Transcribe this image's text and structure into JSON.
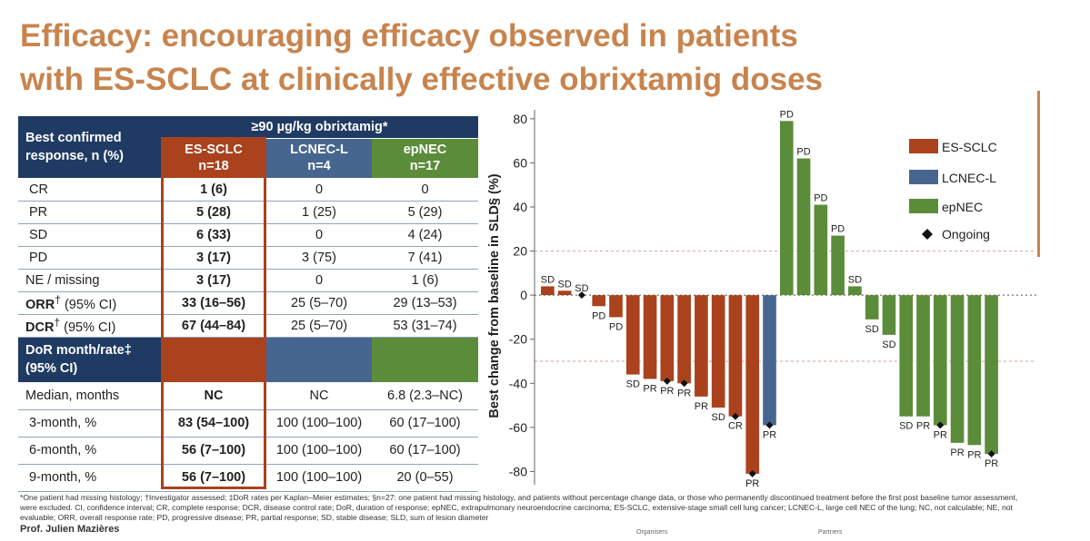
{
  "slide": {
    "title_line1": "Efficacy: encouraging efficacy observed in patients",
    "title_line2": "with ES-SCLC at clinically effective obrixtamig doses",
    "presenter": "Prof. Julien Mazières",
    "footer_left": "Organisers",
    "footer_right": "Partners",
    "footnote": "*One patient had missing histology; †Investigator assessed; ‡DoR rates per Kaplan–Meier estimates; §n=27: one patient had missing histology, and patients without percentage change data, or those who permanently discontinued treatment before the first post baseline tumor assessment, were excluded. CI, confidence interval; CR, complete response; DCR, disease control rate; DoR, duration of response; epNEC, extrapulmonary neuroendocrine carcinoma; ES-SCLC, extensive-stage small cell lung cancer; LCNEC-L, large cell NEC of the lung; NC, not calculable; NE, not evaluable; ORR, overall response rate; PD, progressive disease; PR, partial response; SD, stable disease; SLD, sum of lesion diameter"
  },
  "table": {
    "dose_header": "≥90 µg/kg obrixtamig*",
    "row_header_l1": "Best confirmed",
    "row_header_l2": "response, n (%)",
    "cols": [
      {
        "name": "ES-SCLC",
        "n": "n=18"
      },
      {
        "name": "LCNEC-L",
        "n": "n=4"
      },
      {
        "name": "epNEC",
        "n": "n=17"
      }
    ],
    "resp_rows": [
      {
        "label": "CR",
        "es": "1 (6)",
        "lc": "0",
        "ep": "0"
      },
      {
        "label": "PR",
        "es": "5 (28)",
        "lc": "1 (25)",
        "ep": "5 (29)"
      },
      {
        "label": "SD",
        "es": "6 (33)",
        "lc": "0",
        "ep": "4 (24)"
      },
      {
        "label": "PD",
        "es": "3 (17)",
        "lc": "3 (75)",
        "ep": "7 (41)"
      },
      {
        "label": "NE / missing",
        "es": "3 (17)",
        "lc": "0",
        "ep": "1 (6)"
      }
    ],
    "orr": {
      "label": "ORR",
      "sup": "†",
      "ci": " (95% CI)",
      "es": "33 (16–56)",
      "lc": "25 (5–70)",
      "ep": "29 (13–53)"
    },
    "dcr": {
      "label": "DCR",
      "sup": "†",
      "ci": " (95% CI)",
      "es": "67 (44–84)",
      "lc": "25 (5–70)",
      "ep": "53 (31–74)"
    },
    "dor_header_l1": "DoR month/rate‡",
    "dor_header_l2": "(95% CI)",
    "dor_rows": [
      {
        "label": "Median, months",
        "es": "NC",
        "lc": "NC",
        "ep": "6.8 (2.3–NC)"
      },
      {
        "label": "3-month, %",
        "es": "83 (54–100)",
        "lc": "100 (100–100)",
        "ep": "60 (17–100)"
      },
      {
        "label": "6-month, %",
        "es": "56 (7–100)",
        "lc": "100 (100–100)",
        "ep": "60 (17–100)"
      },
      {
        "label": "9-month, %",
        "es": "56 (7–100)",
        "lc": "100 (100–100)",
        "ep": "20 (0–55)"
      }
    ]
  },
  "colors": {
    "es": "#a9421d",
    "lc": "#47668f",
    "ep": "#5b8c3a",
    "navy": "#1f3b63",
    "title": "#c8844e"
  },
  "chart_data": {
    "type": "bar",
    "title": "",
    "ylabel": "Best change from baseline in SLD§ (%)",
    "ylim": [
      -86,
      82
    ],
    "yticks": [
      80,
      60,
      40,
      20,
      0,
      -20,
      -40,
      -60,
      -80
    ],
    "reference_lines": [
      20,
      -30
    ],
    "legend": [
      "ES-SCLC",
      "LCNEC-L",
      "epNEC",
      "Ongoing"
    ],
    "legend_position": "top-right",
    "series_colors": {
      "ES-SCLC": "#a9421d",
      "LCNEC-L": "#47668f",
      "epNEC": "#5b8c3a"
    },
    "bars": [
      {
        "group": "ES-SCLC",
        "value": 4,
        "label": "SD",
        "ongoing": false
      },
      {
        "group": "ES-SCLC",
        "value": 2,
        "label": "SD",
        "ongoing": false
      },
      {
        "group": "ES-SCLC",
        "value": 0,
        "label": "SD",
        "ongoing": true
      },
      {
        "group": "ES-SCLC",
        "value": -5,
        "label": "PD",
        "ongoing": false
      },
      {
        "group": "ES-SCLC",
        "value": -10,
        "label": "PD",
        "ongoing": false
      },
      {
        "group": "ES-SCLC",
        "value": -36,
        "label": "SD",
        "ongoing": false
      },
      {
        "group": "ES-SCLC",
        "value": -38,
        "label": "PR",
        "ongoing": false
      },
      {
        "group": "ES-SCLC",
        "value": -39,
        "label": "PR",
        "ongoing": true
      },
      {
        "group": "ES-SCLC",
        "value": -40,
        "label": "PR",
        "ongoing": true
      },
      {
        "group": "ES-SCLC",
        "value": -46,
        "label": "PR",
        "ongoing": false
      },
      {
        "group": "ES-SCLC",
        "value": -51,
        "label": "SD",
        "ongoing": false
      },
      {
        "group": "ES-SCLC",
        "value": -55,
        "label": "CR",
        "ongoing": true
      },
      {
        "group": "ES-SCLC",
        "value": -81,
        "label": "PR",
        "ongoing": true
      },
      {
        "group": "LCNEC-L",
        "value": -59,
        "label": "PR",
        "ongoing": true
      },
      {
        "group": "epNEC",
        "value": 79,
        "label": "PD",
        "ongoing": false
      },
      {
        "group": "epNEC",
        "value": 62,
        "label": "PD",
        "ongoing": false
      },
      {
        "group": "epNEC",
        "value": 41,
        "label": "PD",
        "ongoing": false
      },
      {
        "group": "epNEC",
        "value": 27,
        "label": "PD",
        "ongoing": false
      },
      {
        "group": "epNEC",
        "value": 4,
        "label": "SD",
        "ongoing": false
      },
      {
        "group": "epNEC",
        "value": -11,
        "label": "SD",
        "ongoing": false
      },
      {
        "group": "epNEC",
        "value": -18,
        "label": "SD",
        "ongoing": false
      },
      {
        "group": "epNEC",
        "value": -55,
        "label": "SD",
        "ongoing": false
      },
      {
        "group": "epNEC",
        "value": -55,
        "label": "PR",
        "ongoing": false
      },
      {
        "group": "epNEC",
        "value": -59,
        "label": "PR",
        "ongoing": true
      },
      {
        "group": "epNEC",
        "value": -67,
        "label": "PR",
        "ongoing": false
      },
      {
        "group": "epNEC",
        "value": -68,
        "label": "PR",
        "ongoing": false
      },
      {
        "group": "epNEC",
        "value": -72,
        "label": "PR",
        "ongoing": true
      }
    ]
  }
}
